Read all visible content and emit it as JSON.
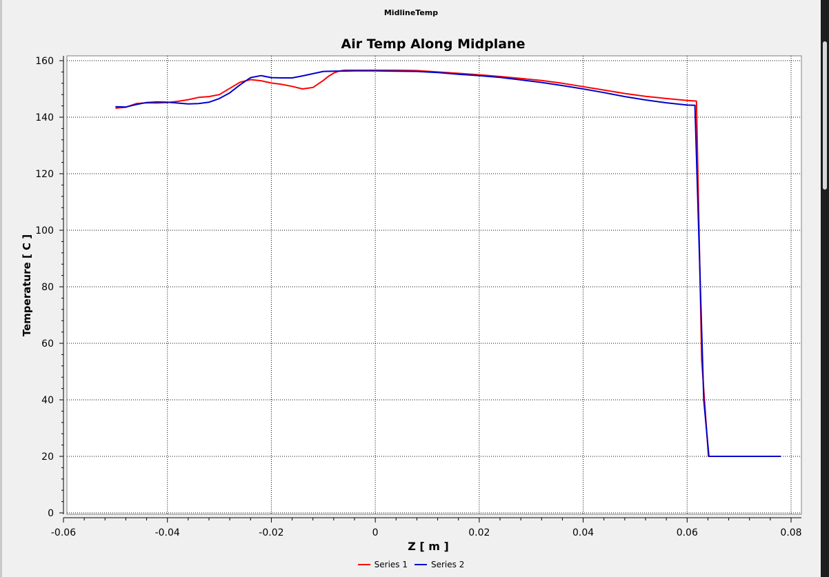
{
  "window": {
    "title": "MidlineTemp"
  },
  "chart_data": {
    "type": "line",
    "title": "Air Temp Along Midplane",
    "xlabel": "Z [ m ]",
    "ylabel": "Temperature [ C ]",
    "xlim": [
      -0.06,
      0.08
    ],
    "ylim": [
      0,
      160
    ],
    "xticks": [
      -0.06,
      -0.04,
      -0.02,
      0,
      0.02,
      0.04,
      0.06,
      0.08
    ],
    "xtick_labels": [
      "-0.06",
      "-0.04",
      "-0.02",
      "0",
      "0.02",
      "0.04",
      "0.06",
      "0.08"
    ],
    "yticks": [
      0,
      20,
      40,
      60,
      80,
      100,
      120,
      140,
      160
    ],
    "ytick_labels": [
      "0",
      "20",
      "40",
      "60",
      "80",
      "100",
      "120",
      "140",
      "160"
    ],
    "grid": true,
    "legend_position": "bottom",
    "series": [
      {
        "name": "Series 1",
        "color": "#ff0000",
        "x": [
          -0.05,
          -0.048,
          -0.046,
          -0.044,
          -0.042,
          -0.04,
          -0.038,
          -0.036,
          -0.034,
          -0.032,
          -0.03,
          -0.028,
          -0.026,
          -0.024,
          -0.022,
          -0.02,
          -0.018,
          -0.016,
          -0.014,
          -0.012,
          -0.01,
          -0.009,
          -0.008,
          -0.007,
          -0.006,
          -0.004,
          0.0,
          0.004,
          0.008,
          0.012,
          0.016,
          0.02,
          0.024,
          0.028,
          0.032,
          0.036,
          0.04,
          0.044,
          0.048,
          0.052,
          0.056,
          0.06,
          0.0618,
          0.0628,
          0.0641,
          0.066,
          0.07,
          0.074,
          0.078
        ],
        "y": [
          143.2,
          143.5,
          144.8,
          145.1,
          145.0,
          145.2,
          145.6,
          146.2,
          147.0,
          147.3,
          148.0,
          150.2,
          152.4,
          153.3,
          152.9,
          152.1,
          151.6,
          150.9,
          150.0,
          150.5,
          153.0,
          154.5,
          155.6,
          156.3,
          156.6,
          156.6,
          156.6,
          156.6,
          156.5,
          156.0,
          155.5,
          155.0,
          154.4,
          153.7,
          153.0,
          152.0,
          150.8,
          149.6,
          148.4,
          147.4,
          146.6,
          145.9,
          145.7,
          54.0,
          20.0,
          20.0,
          20.0,
          20.0,
          20.0
        ]
      },
      {
        "name": "Series 2",
        "color": "#0000cc",
        "x": [
          -0.05,
          -0.048,
          -0.046,
          -0.044,
          -0.042,
          -0.04,
          -0.038,
          -0.036,
          -0.034,
          -0.032,
          -0.03,
          -0.028,
          -0.026,
          -0.024,
          -0.022,
          -0.02,
          -0.018,
          -0.016,
          -0.014,
          -0.012,
          -0.01,
          -0.008,
          -0.004,
          0.0,
          0.004,
          0.008,
          0.012,
          0.016,
          0.02,
          0.024,
          0.028,
          0.032,
          0.036,
          0.04,
          0.044,
          0.048,
          0.052,
          0.056,
          0.06,
          0.0615,
          0.0632,
          0.0642,
          0.066,
          0.07,
          0.074,
          0.078
        ],
        "y": [
          143.7,
          143.6,
          144.5,
          145.2,
          145.4,
          145.3,
          145.0,
          144.7,
          144.8,
          145.3,
          146.6,
          148.6,
          151.5,
          154.0,
          154.7,
          154.0,
          153.9,
          153.9,
          154.6,
          155.4,
          156.2,
          156.3,
          156.4,
          156.4,
          156.3,
          156.2,
          155.8,
          155.2,
          154.7,
          154.1,
          153.2,
          152.3,
          151.2,
          150.0,
          148.7,
          147.3,
          146.1,
          145.1,
          144.3,
          144.2,
          40.0,
          20.0,
          20.0,
          20.0,
          20.0,
          20.0
        ]
      }
    ]
  }
}
